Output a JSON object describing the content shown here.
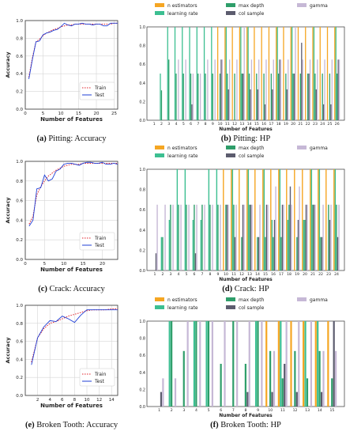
{
  "colors": {
    "n_estimators": "#f5a623",
    "learning_rate": "#3cbf91",
    "max_depth": "#2e9e6a",
    "col_sample": "#5c5c6e",
    "gamma": "#c6b8d6",
    "train": "#e0202a",
    "test": "#1f3fd6"
  },
  "chart_data": [
    {
      "type": "line",
      "caption_letter": "(a)",
      "caption_text": "Pitting: Accuracy",
      "xlabel": "Number of Features",
      "ylabel": "Accuracy",
      "xlim": [
        0,
        26
      ],
      "ylim": [
        0.0,
        1.0
      ],
      "xticks": [
        0,
        5,
        10,
        15,
        20,
        25
      ],
      "yticks": [
        0.0,
        0.2,
        0.4,
        0.6,
        0.8,
        1.0
      ],
      "legend": "lower-right",
      "series": [
        {
          "name": "Train",
          "style": "dotted",
          "x": [
            1,
            2,
            3,
            4,
            5,
            6,
            7,
            8,
            9,
            10,
            11,
            12,
            13,
            14,
            15,
            16,
            17,
            18,
            19,
            20,
            21,
            22,
            23,
            24,
            25,
            26
          ],
          "y": [
            0.36,
            0.58,
            0.76,
            0.79,
            0.83,
            0.86,
            0.88,
            0.9,
            0.91,
            0.93,
            0.94,
            0.95,
            0.95,
            0.96,
            0.96,
            0.96,
            0.96,
            0.96,
            0.96,
            0.96,
            0.96,
            0.96,
            0.96,
            0.96,
            0.97,
            0.97
          ]
        },
        {
          "name": "Test",
          "style": "solid",
          "x": [
            1,
            2,
            3,
            4,
            5,
            6,
            7,
            8,
            9,
            10,
            11,
            12,
            13,
            14,
            15,
            16,
            17,
            18,
            19,
            20,
            21,
            22,
            23,
            24,
            25,
            26
          ],
          "y": [
            0.34,
            0.56,
            0.76,
            0.77,
            0.84,
            0.86,
            0.87,
            0.89,
            0.9,
            0.93,
            0.97,
            0.95,
            0.94,
            0.96,
            0.96,
            0.97,
            0.96,
            0.96,
            0.95,
            0.96,
            0.96,
            0.94,
            0.94,
            0.97,
            0.97,
            0.97
          ]
        }
      ]
    },
    {
      "type": "bar",
      "caption_letter": "(b)",
      "caption_text": "Pitting: HP",
      "xlabel": "Number of Features",
      "ylim": [
        0.0,
        1.0
      ],
      "yticks": [
        0.0,
        0.2,
        0.4,
        0.6,
        0.8,
        1.0
      ],
      "legend": "top",
      "legend_layout": [
        [
          "n estimators",
          "learning rate"
        ],
        [
          "max depth",
          "col sample"
        ],
        [
          "gamma"
        ]
      ],
      "categories": [
        "1",
        "2",
        "3",
        "4",
        "5",
        "6",
        "7",
        "8",
        "9",
        "10",
        "11",
        "12",
        "13",
        "14",
        "15",
        "16",
        "17",
        "18",
        "19",
        "20",
        "21",
        "22",
        "23",
        "24",
        "25",
        "26"
      ],
      "series": [
        {
          "name": "n estimators",
          "color_key": "n_estimators",
          "values": [
            0,
            0,
            0,
            0,
            0,
            0,
            0,
            0,
            0,
            1,
            1,
            1,
            1,
            1,
            1,
            1,
            1,
            1,
            1,
            1,
            1,
            1,
            1,
            1,
            1,
            1
          ]
        },
        {
          "name": "learning rate",
          "color_key": "learning_rate",
          "values": [
            0,
            0.5,
            1,
            1,
            1,
            1,
            1,
            1,
            1,
            0,
            1,
            0,
            1,
            1,
            0,
            0,
            0,
            1,
            0,
            1,
            0,
            0,
            1,
            0,
            0,
            1
          ]
        },
        {
          "name": "max depth",
          "color_key": "max_depth",
          "values": [
            0,
            0.32,
            0.65,
            0.5,
            0.5,
            0.5,
            0.5,
            0.5,
            0.5,
            0.5,
            0.5,
            0.5,
            0.5,
            0.5,
            0.5,
            0.5,
            0.5,
            0.5,
            0.5,
            0.5,
            0.5,
            0.5,
            0.5,
            0.5,
            0.5,
            0.5
          ]
        },
        {
          "name": "col sample",
          "color_key": "col_sample",
          "values": [
            0,
            0,
            0,
            0,
            0,
            0.17,
            0,
            0,
            0,
            0.65,
            0.33,
            0,
            0.5,
            0.33,
            0.33,
            0.17,
            0.33,
            0.65,
            0.33,
            0.5,
            0.83,
            0.5,
            0.33,
            0.17,
            0.17,
            0.65
          ]
        },
        {
          "name": "gamma",
          "color_key": "gamma",
          "values": [
            0,
            0,
            0,
            0.65,
            0.65,
            0.5,
            0.5,
            0.65,
            0.65,
            0.65,
            0.65,
            0.65,
            1,
            0.65,
            0.65,
            0.65,
            0.65,
            0.65,
            0.65,
            1,
            0.65,
            0.65,
            0.65,
            0.65,
            0.65,
            0.65
          ]
        }
      ]
    },
    {
      "type": "line",
      "caption_letter": "(c)",
      "caption_text": "Crack: Accuracy",
      "xlabel": "Number of Features",
      "ylabel": "Accuracy",
      "xlim": [
        0,
        24
      ],
      "ylim": [
        0.0,
        1.0
      ],
      "xticks": [
        0,
        5,
        10,
        15,
        20
      ],
      "yticks": [
        0.0,
        0.2,
        0.4,
        0.6,
        0.8,
        1.0
      ],
      "legend": "lower-right",
      "series": [
        {
          "name": "Train",
          "style": "dotted",
          "x": [
            1,
            2,
            3,
            4,
            5,
            6,
            7,
            8,
            9,
            10,
            11,
            12,
            13,
            14,
            15,
            16,
            17,
            18,
            19,
            20,
            21,
            22,
            23,
            24
          ],
          "y": [
            0.36,
            0.44,
            0.66,
            0.74,
            0.8,
            0.85,
            0.88,
            0.91,
            0.93,
            0.95,
            0.96,
            0.97,
            0.97,
            0.97,
            0.98,
            0.98,
            0.98,
            0.98,
            0.98,
            0.98,
            0.98,
            0.98,
            0.98,
            0.98
          ]
        },
        {
          "name": "Test",
          "style": "solid",
          "x": [
            1,
            2,
            3,
            4,
            5,
            6,
            7,
            8,
            9,
            10,
            11,
            12,
            13,
            14,
            15,
            16,
            17,
            18,
            19,
            20,
            21,
            22,
            23,
            24
          ],
          "y": [
            0.34,
            0.4,
            0.72,
            0.73,
            0.86,
            0.8,
            0.82,
            0.9,
            0.92,
            0.97,
            0.98,
            0.98,
            0.97,
            0.96,
            0.98,
            0.99,
            0.99,
            0.98,
            0.98,
            0.99,
            0.97,
            0.97,
            0.98,
            0.97
          ]
        }
      ]
    },
    {
      "type": "bar",
      "caption_letter": "(d)",
      "caption_text": "Crack: HP",
      "xlabel": "Number of Features",
      "ylim": [
        0.0,
        1.0
      ],
      "yticks": [
        0.0,
        0.2,
        0.4,
        0.6,
        0.8,
        1.0
      ],
      "legend": "top",
      "legend_layout": [
        [
          "n estimators",
          "learning rate"
        ],
        [
          "max depth",
          "col sample"
        ],
        [
          "gamma"
        ]
      ],
      "categories": [
        "1",
        "2",
        "3",
        "4",
        "5",
        "6",
        "7",
        "8",
        "9",
        "10",
        "11",
        "12",
        "13",
        "14",
        "15",
        "16",
        "17",
        "18",
        "19",
        "20",
        "21",
        "22",
        "23",
        "24"
      ],
      "series": [
        {
          "name": "n estimators",
          "color_key": "n_estimators",
          "values": [
            0,
            0,
            0,
            0,
            0,
            0,
            0,
            0,
            0,
            1,
            1,
            1,
            1,
            1,
            1,
            1,
            1,
            1,
            1,
            1,
            1,
            1,
            1,
            1
          ]
        },
        {
          "name": "learning rate",
          "color_key": "learning_rate",
          "values": [
            0,
            0.33,
            0.5,
            1,
            1,
            0.5,
            0.5,
            1,
            1,
            0,
            1,
            0,
            1,
            0,
            1,
            0.5,
            1,
            0.5,
            0,
            0.5,
            1,
            1,
            0,
            1
          ]
        },
        {
          "name": "max depth",
          "color_key": "max_depth",
          "values": [
            0,
            0.33,
            0.65,
            0.65,
            0.65,
            0.65,
            0.65,
            0.65,
            0.65,
            0.65,
            0.65,
            0.33,
            0.65,
            0.33,
            0.33,
            0.33,
            0.33,
            0.65,
            0.33,
            0.5,
            0.65,
            0.33,
            0.65,
            0.65
          ]
        },
        {
          "name": "col sample",
          "color_key": "col_sample",
          "values": [
            0.17,
            0,
            0,
            0,
            0,
            0.17,
            0,
            0,
            0,
            0.65,
            0.33,
            0.65,
            0.65,
            0.33,
            0.65,
            0.5,
            0.65,
            0.83,
            0.5,
            0.65,
            0.65,
            0.33,
            0.5,
            0.33
          ]
        },
        {
          "name": "gamma",
          "color_key": "gamma",
          "values": [
            0.65,
            0.65,
            0.65,
            0.65,
            0.65,
            0.65,
            0.65,
            0.65,
            0.65,
            0.65,
            0.65,
            0.65,
            0.65,
            0.65,
            0.65,
            0.83,
            0.65,
            0.65,
            0.83,
            0.65,
            0.65,
            0.65,
            0.65,
            0.65
          ]
        }
      ]
    },
    {
      "type": "line",
      "caption_letter": "(e)",
      "caption_text": "Broken Tooth: Accuracy",
      "xlabel": "Number of Features",
      "ylabel": "Accuracy",
      "xlim": [
        0,
        15
      ],
      "ylim": [
        0.0,
        1.0
      ],
      "xticks": [
        2,
        4,
        6,
        8,
        10,
        12,
        14
      ],
      "yticks": [
        0.0,
        0.2,
        0.4,
        0.6,
        0.8,
        1.0
      ],
      "legend": "lower-right",
      "series": [
        {
          "name": "Train",
          "style": "dotted",
          "x": [
            1,
            2,
            3,
            4,
            5,
            6,
            7,
            8,
            9,
            10,
            11,
            12,
            13,
            14,
            15
          ],
          "y": [
            0.37,
            0.64,
            0.74,
            0.8,
            0.82,
            0.85,
            0.88,
            0.9,
            0.92,
            0.94,
            0.95,
            0.95,
            0.95,
            0.96,
            0.96
          ]
        },
        {
          "name": "Test",
          "style": "solid",
          "x": [
            1,
            2,
            3,
            4,
            5,
            6,
            7,
            8,
            9,
            10,
            11,
            12,
            13,
            14,
            15
          ],
          "y": [
            0.34,
            0.64,
            0.76,
            0.83,
            0.82,
            0.88,
            0.85,
            0.81,
            0.89,
            0.95,
            0.95,
            0.95,
            0.95,
            0.95,
            0.95
          ]
        }
      ]
    },
    {
      "type": "bar",
      "caption_letter": "(f)",
      "caption_text": "Broken Tooth: HP",
      "xlabel": "Number of Features",
      "ylim": [
        0.0,
        1.0
      ],
      "yticks": [
        0.0,
        0.2,
        0.4,
        0.6,
        0.8,
        1.0
      ],
      "legend": "top",
      "legend_layout": [
        [
          "n estimators",
          "learning rate"
        ],
        [
          "max depth",
          "col sample"
        ],
        [
          "gamma"
        ]
      ],
      "categories": [
        "1",
        "2",
        "3",
        "4",
        "5",
        "6",
        "7",
        "8",
        "9",
        "10",
        "11",
        "12",
        "13",
        "14",
        "15"
      ],
      "series": [
        {
          "name": "n estimators",
          "color_key": "n_estimators",
          "values": [
            0,
            0,
            0,
            0,
            0,
            0,
            0,
            0,
            0,
            1,
            1,
            1,
            1,
            1,
            1
          ]
        },
        {
          "name": "learning rate",
          "color_key": "learning_rate",
          "values": [
            0,
            1,
            0,
            1,
            1,
            0,
            0,
            0,
            1,
            0,
            1,
            0,
            1,
            1,
            0
          ]
        },
        {
          "name": "max depth",
          "color_key": "max_depth",
          "values": [
            0,
            1,
            0.65,
            1,
            1,
            0.5,
            1,
            0.5,
            1,
            0.65,
            0.33,
            0.65,
            0.33,
            0.65,
            0.33
          ]
        },
        {
          "name": "col sample",
          "color_key": "col_sample",
          "values": [
            0.17,
            0,
            0,
            0,
            0,
            0,
            0,
            0.17,
            0,
            0.17,
            0.5,
            0.17,
            0,
            0.17,
            1
          ]
        },
        {
          "name": "gamma",
          "color_key": "gamma",
          "values": [
            0.33,
            0.33,
            1,
            1,
            1,
            1,
            1,
            1,
            1,
            0.65,
            1,
            1,
            1,
            0.65,
            0.65
          ]
        }
      ]
    }
  ]
}
